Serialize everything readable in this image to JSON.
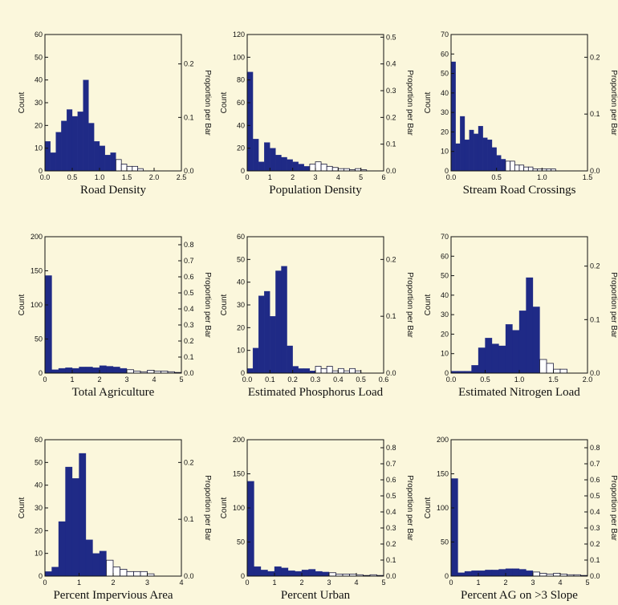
{
  "colors": {
    "background": "#fbf7dc",
    "filled_bar": "#1f2a86",
    "open_bar": "#ffffff",
    "axis": "#111111"
  },
  "chart_data": [
    {
      "type": "bar",
      "xlabel": "Road Density",
      "ylabel": "Count",
      "y2label": "Proportion per Bar",
      "xlim": [
        0,
        2.5
      ],
      "xticks": [
        "0.0",
        "0.5",
        "1.0",
        "1.5",
        "2.0",
        "2.5"
      ],
      "ylim": [
        0,
        60
      ],
      "yticks": [
        "0",
        "10",
        "20",
        "30",
        "40",
        "50",
        "60"
      ],
      "y2ticks": [
        "0.0",
        "0.1",
        "0.2"
      ],
      "y2tick_values": [
        0,
        0.1,
        0.2
      ],
      "y2_max": 0.255,
      "bin_start": 0,
      "bin_width": 0.1,
      "counts": [
        13,
        8,
        17,
        22,
        27,
        24,
        26,
        40,
        21,
        13,
        11,
        7,
        8,
        5,
        3,
        2,
        2,
        1
      ],
      "filled_bins": 13
    },
    {
      "type": "bar",
      "xlabel": "Population Density",
      "ylabel": "Count",
      "y2label": "Proportion per Bar",
      "xlim": [
        0,
        6
      ],
      "xticks": [
        "0",
        "1",
        "2",
        "3",
        "4",
        "5",
        "6"
      ],
      "ylim": [
        0,
        120
      ],
      "yticks": [
        "0",
        "20",
        "40",
        "60",
        "80",
        "100",
        "120"
      ],
      "y2ticks": [
        "0.0",
        "0.1",
        "0.2",
        "0.3",
        "0.4",
        "0.5"
      ],
      "y2tick_values": [
        0,
        0.1,
        0.2,
        0.3,
        0.4,
        0.5
      ],
      "y2_max": 0.51,
      "bin_start": 0,
      "bin_width": 0.25,
      "counts": [
        87,
        28,
        8,
        25,
        20,
        14,
        12,
        10,
        8,
        6,
        4,
        6,
        8,
        6,
        4,
        3,
        2,
        2,
        1,
        2,
        1
      ],
      "filled_bins": 11
    },
    {
      "type": "bar",
      "xlabel": "Stream Road Crossings",
      "ylabel": "Count",
      "y2label": "Proportion per Bar",
      "xlim": [
        0,
        1.5
      ],
      "xticks": [
        "0.0",
        "0.5",
        "1.0",
        "1.5"
      ],
      "ylim": [
        0,
        70
      ],
      "yticks": [
        "0",
        "10",
        "20",
        "30",
        "40",
        "50",
        "60",
        "70"
      ],
      "y2ticks": [
        "0.0",
        "0.1",
        "0.2"
      ],
      "y2tick_values": [
        0,
        0.1,
        0.2
      ],
      "y2_max": 0.24,
      "bin_start": 0,
      "bin_width": 0.05,
      "counts": [
        56,
        14,
        28,
        16,
        21,
        19,
        23,
        17,
        16,
        12,
        8,
        6,
        5,
        5,
        3,
        3,
        2,
        2,
        1,
        1,
        1,
        1,
        1
      ],
      "filled_bins": 12
    },
    {
      "type": "bar",
      "xlabel": "Total Agriculture",
      "ylabel": "Count",
      "y2label": "Proportion per Bar",
      "xlim": [
        0,
        5
      ],
      "xticks": [
        "0",
        "1",
        "2",
        "3",
        "4",
        "5"
      ],
      "ylim": [
        0,
        200
      ],
      "yticks": [
        "0",
        "50",
        "100",
        "150",
        "200"
      ],
      "y2ticks": [
        "0.0",
        "0.1",
        "0.2",
        "0.3",
        "0.4",
        "0.5",
        "0.6",
        "0.7",
        "0.8"
      ],
      "y2tick_values": [
        0,
        0.1,
        0.2,
        0.3,
        0.4,
        0.5,
        0.6,
        0.7,
        0.8
      ],
      "y2_max": 0.85,
      "bin_start": 0,
      "bin_width": 0.25,
      "counts": [
        143,
        5,
        7,
        8,
        7,
        9,
        9,
        8,
        11,
        10,
        9,
        7,
        5,
        3,
        2,
        4,
        3,
        3,
        2,
        1
      ],
      "filled_bins": 12
    },
    {
      "type": "bar",
      "xlabel": "Estimated Phosphorus Load",
      "ylabel": "Count",
      "y2label": "Proportion per Bar",
      "xlim": [
        0,
        0.6
      ],
      "xticks": [
        "0.0",
        "0.1",
        "0.2",
        "0.3",
        "0.4",
        "0.5",
        "0.6"
      ],
      "ylim": [
        0,
        60
      ],
      "yticks": [
        "0",
        "10",
        "20",
        "30",
        "40",
        "50",
        "60"
      ],
      "y2ticks": [
        "0.0",
        "0.1",
        "0.2"
      ],
      "y2tick_values": [
        0,
        0.1,
        0.2
      ],
      "y2_max": 0.24,
      "bin_start": 0,
      "bin_width": 0.025,
      "counts": [
        2,
        11,
        34,
        36,
        25,
        45,
        47,
        12,
        3,
        2,
        2,
        1,
        3,
        2,
        3,
        1,
        2,
        1,
        2,
        1
      ],
      "filled_bins": 12
    },
    {
      "type": "bar",
      "xlabel": "Estimated Nitrogen Load",
      "ylabel": "Count",
      "y2label": "Proportion per Bar",
      "xlim": [
        0,
        2.0
      ],
      "xticks": [
        "0.0",
        "0.5",
        "1.0",
        "1.5",
        "2.0"
      ],
      "ylim": [
        0,
        70
      ],
      "yticks": [
        "0",
        "10",
        "20",
        "30",
        "40",
        "50",
        "60",
        "70"
      ],
      "y2ticks": [
        "0.0",
        "0.1",
        "0.2"
      ],
      "y2tick_values": [
        0,
        0.1,
        0.2
      ],
      "y2_max": 0.255,
      "bin_start": 0,
      "bin_width": 0.1,
      "counts": [
        1,
        1,
        1,
        4,
        13,
        18,
        15,
        14,
        25,
        22,
        32,
        49,
        34,
        7,
        5,
        2,
        2
      ],
      "filled_bins": 13
    },
    {
      "type": "bar",
      "xlabel": "Percent Impervious Area",
      "ylabel": "Count",
      "y2label": "Proportion per Bar",
      "xlim": [
        0,
        4
      ],
      "xticks": [
        "0",
        "1",
        "2",
        "3",
        "4"
      ],
      "ylim": [
        0,
        60
      ],
      "yticks": [
        "0",
        "10",
        "20",
        "30",
        "40",
        "50",
        "60"
      ],
      "y2ticks": [
        "0.0",
        "0.1",
        "0.2"
      ],
      "y2tick_values": [
        0,
        0.1,
        0.2
      ],
      "y2_max": 0.24,
      "bin_start": 0,
      "bin_width": 0.2,
      "counts": [
        2,
        4,
        24,
        48,
        43,
        54,
        16,
        10,
        11,
        7,
        4,
        3,
        2,
        2,
        2,
        1
      ],
      "filled_bins": 9
    },
    {
      "type": "bar",
      "xlabel": "Percent Urban",
      "ylabel": "Count",
      "y2label": "Proportion per Bar",
      "xlim": [
        0,
        5
      ],
      "xticks": [
        "0",
        "1",
        "2",
        "3",
        "4",
        "5"
      ],
      "ylim": [
        0,
        200
      ],
      "yticks": [
        "0",
        "50",
        "100",
        "150",
        "200"
      ],
      "y2ticks": [
        "0.0",
        "0.1",
        "0.2",
        "0.3",
        "0.4",
        "0.5",
        "0.6",
        "0.7",
        "0.8"
      ],
      "y2tick_values": [
        0,
        0.1,
        0.2,
        0.3,
        0.4,
        0.5,
        0.6,
        0.7,
        0.8
      ],
      "y2_max": 0.85,
      "bin_start": 0,
      "bin_width": 0.25,
      "counts": [
        139,
        14,
        9,
        7,
        14,
        12,
        8,
        7,
        9,
        10,
        7,
        6,
        5,
        3,
        3,
        3,
        2,
        1,
        2,
        1
      ],
      "filled_bins": 12
    },
    {
      "type": "bar",
      "xlabel": "Percent AG on >3 Slope",
      "ylabel": "Count",
      "y2label": "Proportion per Bar",
      "xlim": [
        0,
        5
      ],
      "xticks": [
        "0",
        "1",
        "2",
        "3",
        "4",
        "5"
      ],
      "ylim": [
        0,
        200
      ],
      "yticks": [
        "0",
        "50",
        "100",
        "150",
        "200"
      ],
      "y2ticks": [
        "0.0",
        "0.1",
        "0.2",
        "0.3",
        "0.4",
        "0.5",
        "0.6",
        "0.7",
        "0.8"
      ],
      "y2tick_values": [
        0,
        0.1,
        0.2,
        0.3,
        0.4,
        0.5,
        0.6,
        0.7,
        0.8
      ],
      "y2_max": 0.85,
      "bin_start": 0,
      "bin_width": 0.25,
      "counts": [
        143,
        5,
        7,
        8,
        8,
        9,
        9,
        10,
        11,
        11,
        10,
        8,
        6,
        4,
        3,
        4,
        3,
        2,
        2,
        1
      ],
      "filled_bins": 12
    }
  ]
}
